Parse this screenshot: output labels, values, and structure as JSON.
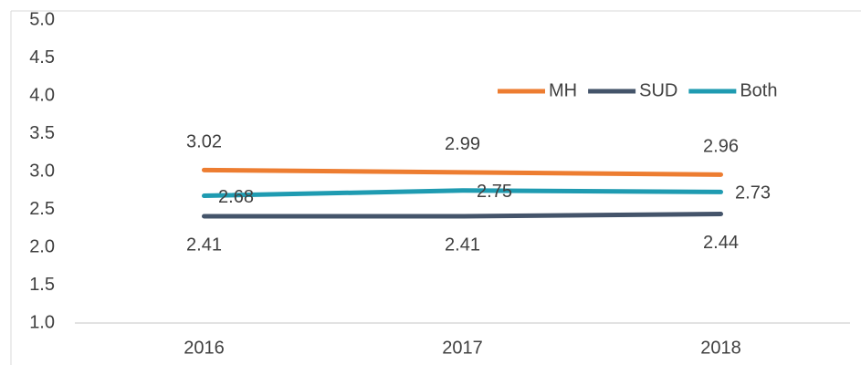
{
  "chart_data": {
    "type": "line",
    "categories": [
      "2016",
      "2017",
      "2018"
    ],
    "series": [
      {
        "name": "MH",
        "color": "#ed7d31",
        "values": [
          3.02,
          2.99,
          2.96
        ]
      },
      {
        "name": "SUD",
        "color": "#44546a",
        "values": [
          2.41,
          2.41,
          2.44
        ]
      },
      {
        "name": "Both",
        "color": "#1f9bb1",
        "values": [
          2.68,
          2.75,
          2.73
        ]
      }
    ],
    "ylim": [
      1,
      5
    ],
    "yticks": [
      {
        "value": 1,
        "label": "1.0"
      },
      1.5,
      {
        "value": 2,
        "label": "2.0"
      },
      2.5,
      {
        "value": 3,
        "label": "3.0"
      },
      3.5,
      {
        "value": 4,
        "label": "4.0"
      },
      4.5,
      {
        "value": 5,
        "label": "5.0"
      }
    ],
    "grid": false,
    "legend": "top-right"
  }
}
